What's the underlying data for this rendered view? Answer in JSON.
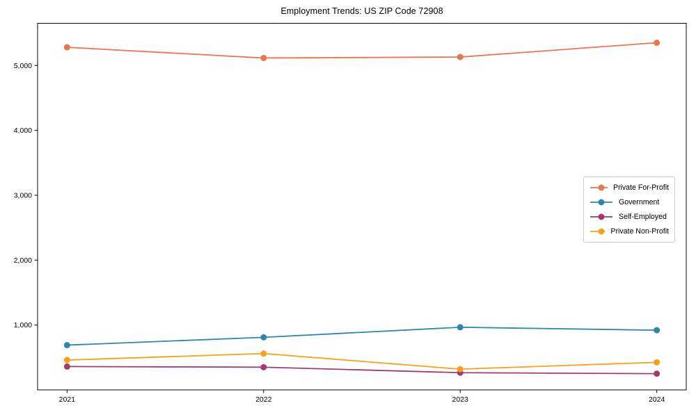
{
  "chart_data": {
    "type": "line",
    "title": "Employment Trends: US ZIP Code 72908",
    "x": [
      2021,
      2022,
      2023,
      2024
    ],
    "x_tick_labels": [
      "2021",
      "2022",
      "2023",
      "2024"
    ],
    "xlim": [
      2020.85,
      2024.15
    ],
    "ylim": [
      0,
      5650
    ],
    "y_ticks": [
      {
        "value": 1000,
        "label": "1,000"
      },
      {
        "value": 2000,
        "label": "2,000"
      },
      {
        "value": 3000,
        "label": "3,000"
      },
      {
        "value": 4000,
        "label": "4,000"
      },
      {
        "value": 5000,
        "label": "5,000"
      }
    ],
    "grid": false,
    "legend_position": "center-right",
    "marker": "circle",
    "axis_color": "#000000",
    "text_color": "#000000",
    "series": [
      {
        "name": "Private For-Profit",
        "color": "#E8774E",
        "values": [
          5280,
          5115,
          5130,
          5350
        ]
      },
      {
        "name": "Government",
        "color": "#2E86AB",
        "values": [
          690,
          810,
          965,
          920
        ]
      },
      {
        "name": "Self-Employed",
        "color": "#A23B72",
        "values": [
          360,
          350,
          265,
          250
        ]
      },
      {
        "name": "Private Non-Profit",
        "color": "#F5A11B",
        "values": [
          460,
          560,
          320,
          425
        ]
      }
    ]
  }
}
